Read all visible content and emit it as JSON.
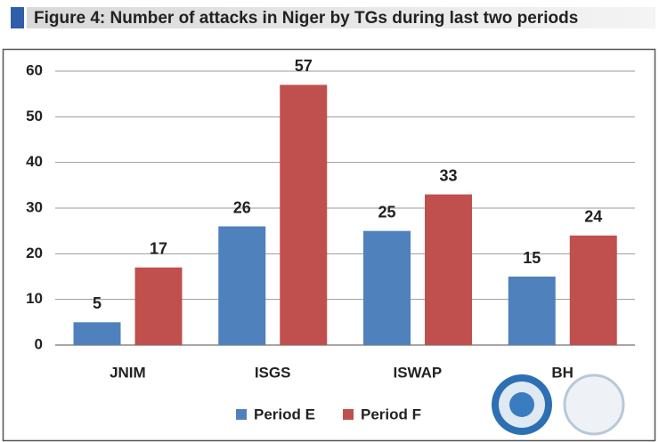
{
  "chart_data": {
    "type": "bar",
    "title": "Figure 4: Number of attacks in Niger by TGs during last two periods",
    "categories": [
      "JNIM",
      "ISGS",
      "ISWAP",
      "BH"
    ],
    "series": [
      {
        "name": "Period E",
        "color": "#4f81bd",
        "values": [
          5,
          26,
          25,
          15
        ]
      },
      {
        "name": "Period F",
        "color": "#c0504d",
        "values": [
          17,
          57,
          33,
          24
        ]
      }
    ],
    "ylim": [
      0,
      60
    ],
    "yticks": [
      0,
      10,
      20,
      30,
      40,
      50,
      60
    ],
    "grid": true,
    "legend": "bottom"
  }
}
